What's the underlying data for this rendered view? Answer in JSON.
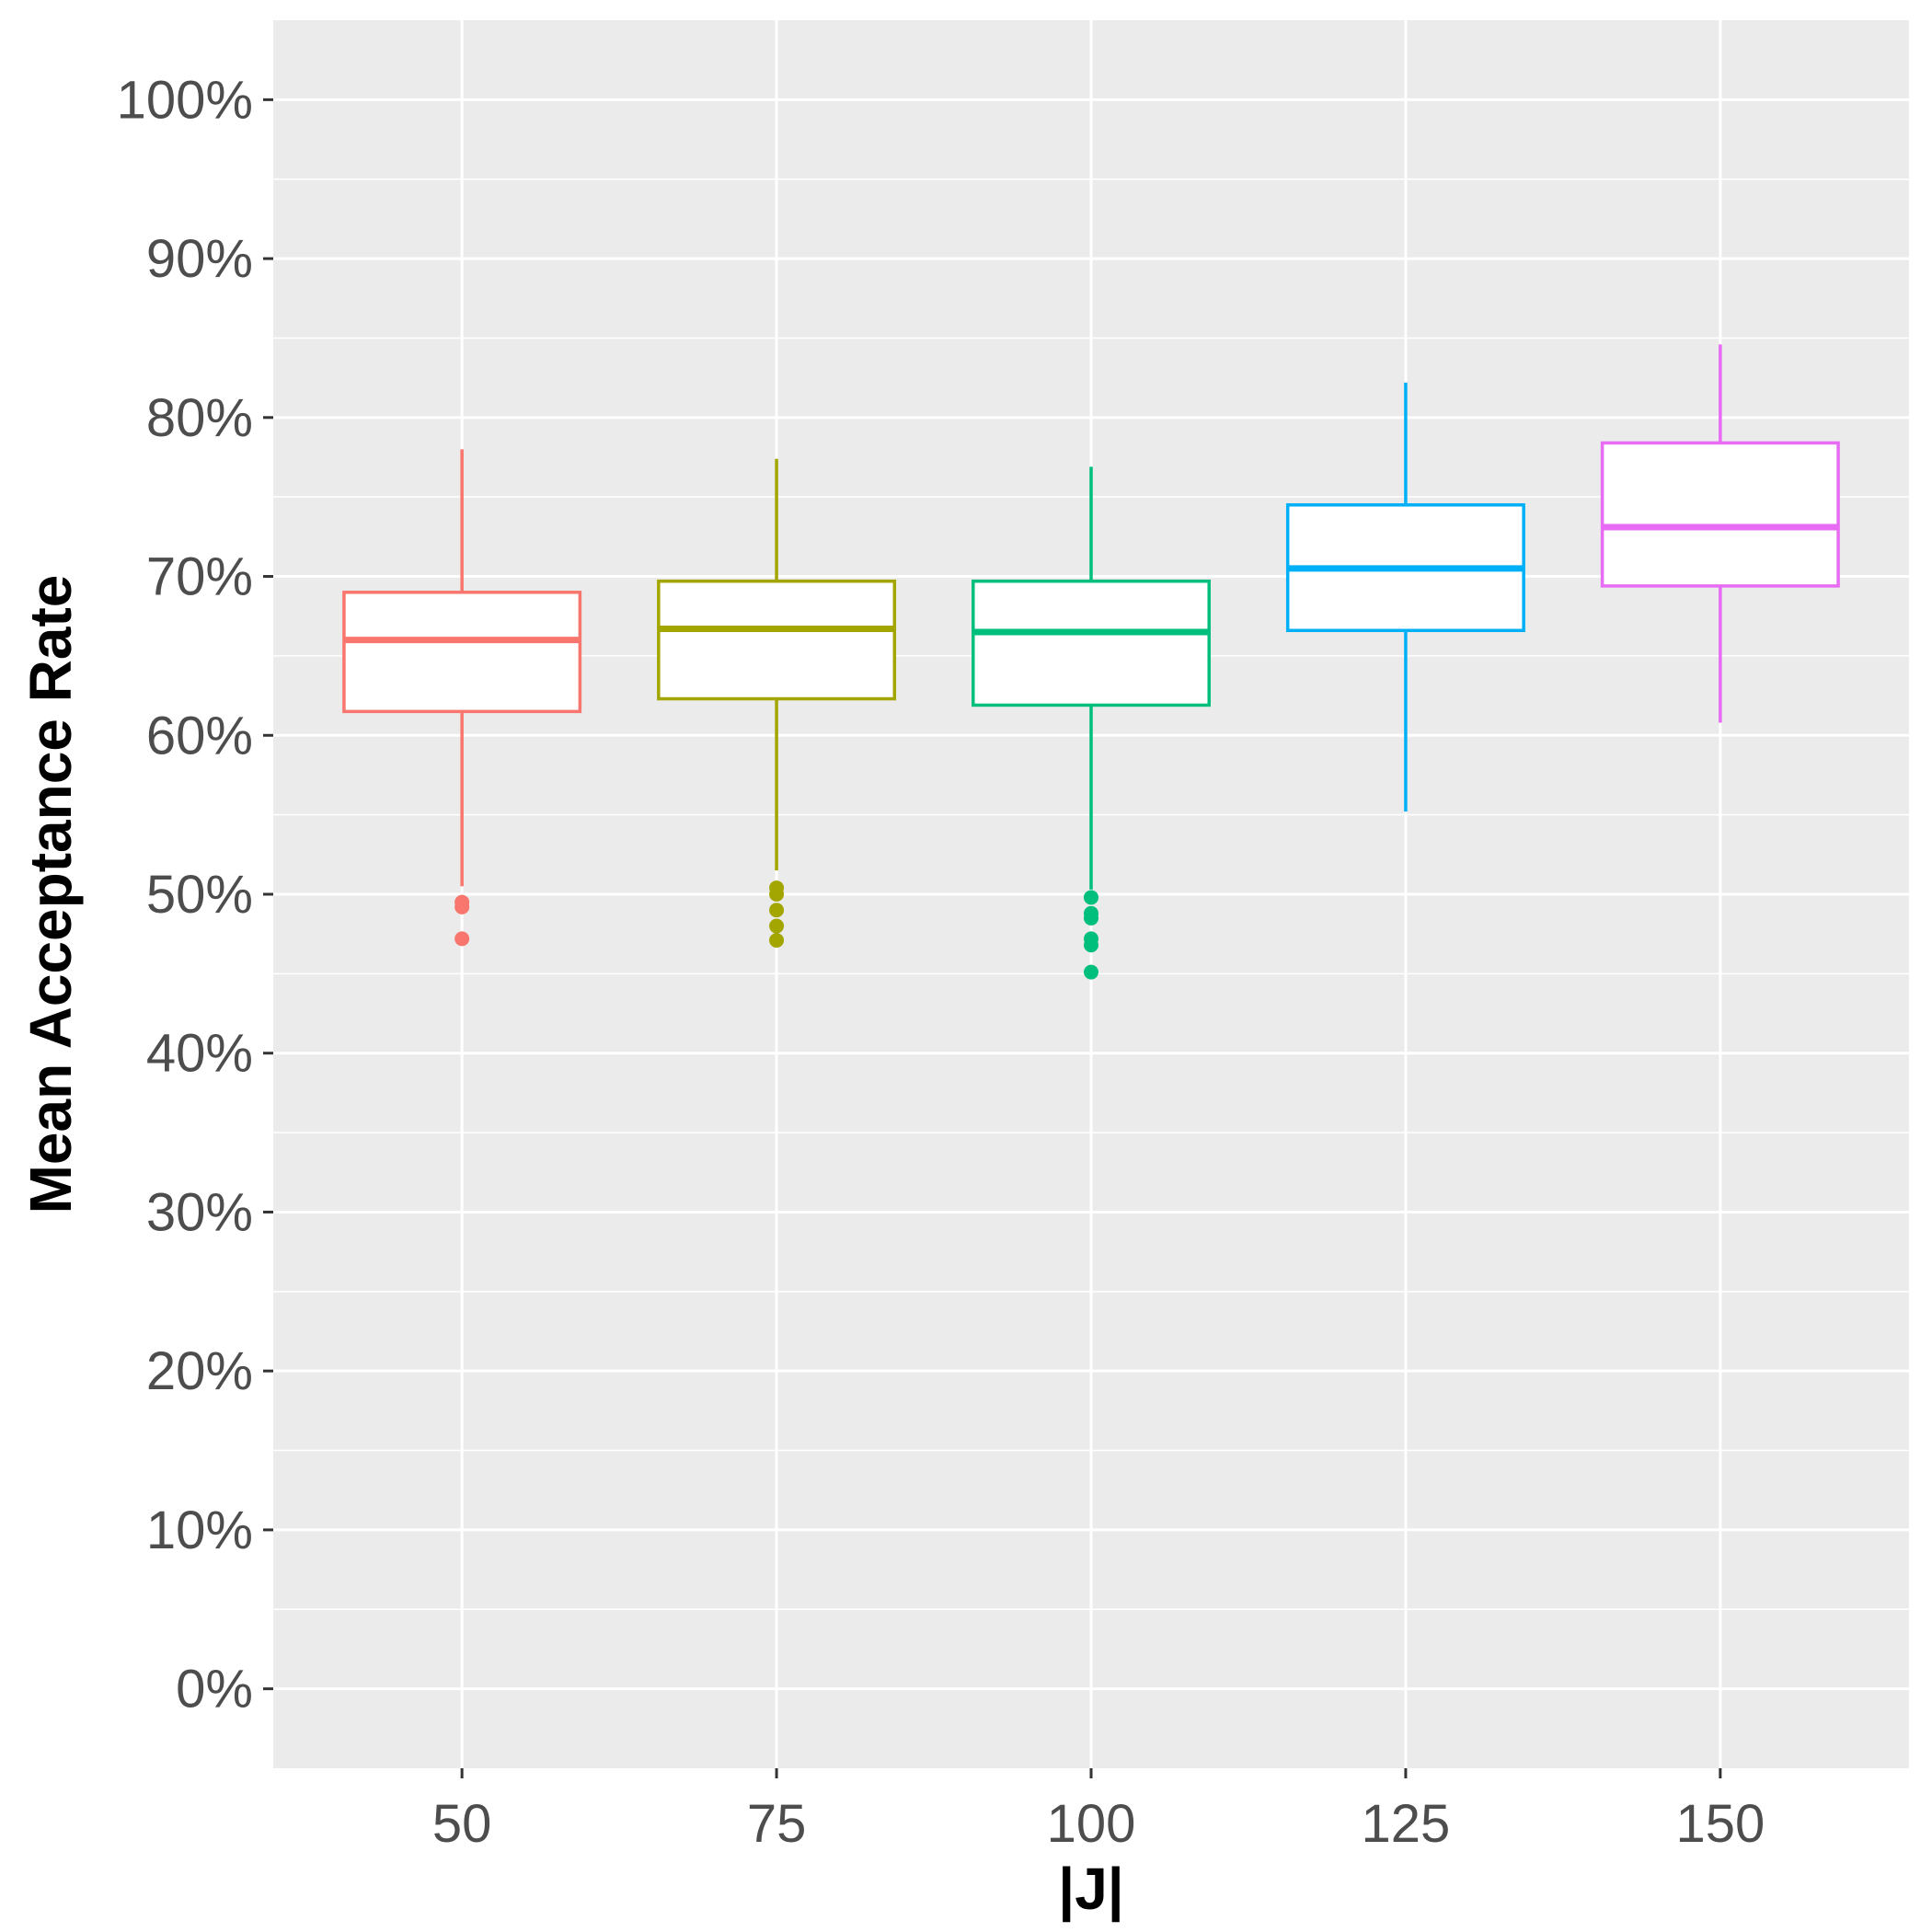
{
  "chart_data": {
    "type": "box",
    "title": "",
    "xlabel": "|J|",
    "ylabel": "Mean Acceptance Rate",
    "categories": [
      "50",
      "75",
      "100",
      "125",
      "150"
    ],
    "ylim": [
      -0.05,
      1.05
    ],
    "y_ticks": [
      0,
      0.1,
      0.2,
      0.3,
      0.4,
      0.5,
      0.6,
      0.7,
      0.8,
      0.9,
      1.0
    ],
    "y_tick_labels": [
      "0%",
      "10%",
      "20%",
      "30%",
      "40%",
      "50%",
      "60%",
      "70%",
      "80%",
      "90%",
      "100%"
    ],
    "grid": true,
    "legend": "none",
    "boxes": [
      {
        "category": "50",
        "color": "#F8766D",
        "whisker_low": 0.505,
        "q1": 0.615,
        "median": 0.66,
        "q3": 0.69,
        "whisker_high": 0.78,
        "outliers": [
          0.495,
          0.492,
          0.472
        ]
      },
      {
        "category": "75",
        "color": "#A3A500",
        "whisker_low": 0.515,
        "q1": 0.623,
        "median": 0.667,
        "q3": 0.697,
        "whisker_high": 0.774,
        "outliers": [
          0.504,
          0.5,
          0.49,
          0.48,
          0.471
        ]
      },
      {
        "category": "100",
        "color": "#00BF7D",
        "whisker_low": 0.503,
        "q1": 0.619,
        "median": 0.665,
        "q3": 0.697,
        "whisker_high": 0.769,
        "outliers": [
          0.498,
          0.488,
          0.485,
          0.472,
          0.468,
          0.451
        ]
      },
      {
        "category": "125",
        "color": "#00B0F6",
        "whisker_low": 0.552,
        "q1": 0.666,
        "median": 0.705,
        "q3": 0.745,
        "whisker_high": 0.822,
        "outliers": []
      },
      {
        "category": "150",
        "color": "#E76BF3",
        "whisker_low": 0.608,
        "q1": 0.694,
        "median": 0.731,
        "q3": 0.784,
        "whisker_high": 0.846,
        "outliers": []
      }
    ]
  }
}
